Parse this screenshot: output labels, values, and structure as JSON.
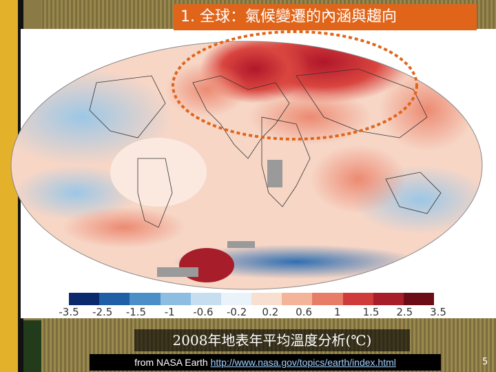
{
  "slide": {
    "title": "1. 全球：氣候變遷的內涵與趨向",
    "caption": "2008年地表年平均溫度分析(℃)",
    "source_prefix": "from NASA Earth ",
    "source_link": "http://www.nasa.gov/topics/earth/index.html",
    "page_number": "5"
  },
  "legend": {
    "ticks": [
      "-3.5",
      "-2.5",
      "-1.5",
      "-1",
      "-0.6",
      "-0.2",
      "0.2",
      "0.6",
      "1",
      "1.5",
      "2.5",
      "3.5"
    ],
    "colors": [
      "#0b2a6e",
      "#1f5fa8",
      "#4b8fc8",
      "#8dbde0",
      "#c6def0",
      "#eaf3f9",
      "#f8e0d0",
      "#f3b49a",
      "#e87d67",
      "#cf3a3a",
      "#a81d2a",
      "#6b0c16"
    ]
  },
  "colors": {
    "accent": "#e0651a",
    "highlight_ellipse": "#e0651a"
  }
}
